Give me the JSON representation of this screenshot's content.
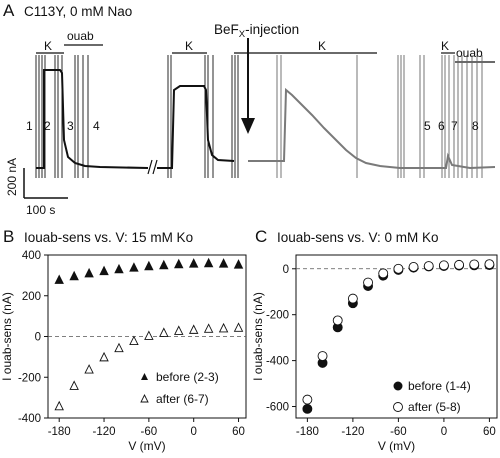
{
  "panel_a": {
    "letter": "A",
    "title": "C113Y, 0 mM Nao",
    "k_label": "K",
    "ouab_label": "ouab",
    "befx_label": "BeF",
    "befx_sub": "X",
    "befx_suffix": "-injection",
    "markers_left": [
      "1",
      "2",
      "3",
      "4"
    ],
    "markers_right": [
      "5",
      "6",
      "7",
      "8"
    ],
    "scale_current": "200 nA",
    "scale_time": "100 s",
    "colors": {
      "before": "#111111",
      "after": "#7a7a7a"
    }
  },
  "chart_data": [
    {
      "type": "scatter",
      "panel": "B",
      "title": "Iouab-sens vs. V: 15 mM Ko",
      "xlabel": "V (mV)",
      "ylabel": "I ouab-sens (nA)",
      "xlim": [
        -195,
        70
      ],
      "ylim": [
        -400,
        400
      ],
      "xticks": [
        -180,
        -120,
        -60,
        0,
        60
      ],
      "yticks": [
        -400,
        -200,
        0,
        200,
        400
      ],
      "zero_line": true,
      "legend_position": "bottom-right",
      "series": [
        {
          "name": "before (2-3)",
          "marker": "filled-triangle",
          "x": [
            -180,
            -160,
            -140,
            -120,
            -100,
            -80,
            -60,
            -40,
            -20,
            0,
            20,
            40,
            60
          ],
          "y": [
            280,
            298,
            312,
            323,
            332,
            340,
            347,
            352,
            357,
            360,
            362,
            360,
            355
          ]
        },
        {
          "name": "after (6-7)",
          "marker": "open-triangle",
          "x": [
            -180,
            -160,
            -140,
            -120,
            -100,
            -80,
            -60,
            -40,
            -20,
            0,
            20,
            40,
            60
          ],
          "y": [
            -340,
            -240,
            -160,
            -100,
            -55,
            -20,
            5,
            20,
            30,
            35,
            40,
            42,
            45
          ]
        }
      ]
    },
    {
      "type": "scatter",
      "panel": "C",
      "title": "Iouab-sens vs. V: 0 mM Ko",
      "xlabel": "V (mV)",
      "ylabel": "I ouab-sens (nA)",
      "xlim": [
        -195,
        70
      ],
      "ylim": [
        -650,
        60
      ],
      "xticks": [
        -180,
        -120,
        -60,
        0,
        60
      ],
      "yticks": [
        -600,
        -400,
        -200,
        0
      ],
      "zero_line": true,
      "legend_position": "bottom-right",
      "series": [
        {
          "name": "before (1-4)",
          "marker": "filled-circle",
          "x": [
            -180,
            -160,
            -140,
            -120,
            -100,
            -80,
            -60,
            -40,
            -20,
            0,
            20,
            40,
            60
          ],
          "y": [
            -610,
            -410,
            -255,
            -150,
            -75,
            -30,
            -5,
            5,
            10,
            12,
            14,
            15,
            16
          ]
        },
        {
          "name": "after (5-8)",
          "marker": "open-circle",
          "x": [
            -180,
            -160,
            -140,
            -120,
            -100,
            -80,
            -60,
            -40,
            -20,
            0,
            20,
            40,
            60
          ],
          "y": [
            -570,
            -380,
            -225,
            -130,
            -60,
            -20,
            0,
            8,
            12,
            15,
            17,
            19,
            20
          ]
        }
      ]
    }
  ]
}
